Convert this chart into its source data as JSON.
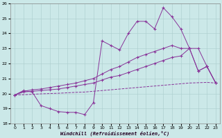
{
  "xlabel": "Windchill (Refroidissement éolien,°C)",
  "background_color": "#cbe8e8",
  "grid_color": "#aacccc",
  "line_color": "#883399",
  "x_values": [
    0,
    1,
    2,
    3,
    4,
    5,
    6,
    7,
    8,
    9,
    10,
    11,
    12,
    13,
    14,
    15,
    16,
    17,
    18,
    19,
    20,
    21,
    22,
    23
  ],
  "line1_y": [
    19.9,
    20.2,
    20.1,
    19.2,
    19.0,
    18.8,
    18.75,
    18.75,
    18.6,
    19.4,
    23.5,
    23.2,
    22.9,
    24.0,
    24.8,
    24.8,
    24.3,
    25.7,
    25.1,
    24.3,
    23.0,
    23.0,
    21.8,
    20.7
  ],
  "line2_y": [
    19.9,
    20.15,
    20.25,
    20.3,
    20.4,
    20.5,
    20.6,
    20.7,
    20.85,
    21.0,
    21.3,
    21.6,
    21.8,
    22.1,
    22.4,
    22.6,
    22.8,
    23.0,
    23.2,
    23.0,
    23.0,
    21.5,
    21.8,
    20.7
  ],
  "line3_y": [
    19.9,
    20.1,
    20.15,
    20.2,
    20.25,
    20.3,
    20.4,
    20.5,
    20.6,
    20.7,
    20.9,
    21.1,
    21.2,
    21.4,
    21.6,
    21.8,
    22.0,
    22.2,
    22.4,
    22.5,
    23.0,
    21.5,
    21.8,
    20.7
  ],
  "line4_y": [
    19.9,
    19.92,
    19.95,
    19.98,
    20.0,
    20.02,
    20.05,
    20.08,
    20.1,
    20.15,
    20.2,
    20.25,
    20.3,
    20.35,
    20.4,
    20.45,
    20.5,
    20.55,
    20.6,
    20.65,
    20.7,
    20.72,
    20.74,
    20.7
  ],
  "ylim": [
    18,
    26
  ],
  "xlim_min": -0.5,
  "xlim_max": 23.5,
  "yticks": [
    18,
    19,
    20,
    21,
    22,
    23,
    24,
    25,
    26
  ],
  "xticks": [
    0,
    1,
    2,
    3,
    4,
    5,
    6,
    7,
    8,
    9,
    10,
    11,
    12,
    13,
    14,
    15,
    16,
    17,
    18,
    19,
    20,
    21,
    22,
    23
  ],
  "figsize": [
    3.2,
    2.0
  ],
  "dpi": 100
}
